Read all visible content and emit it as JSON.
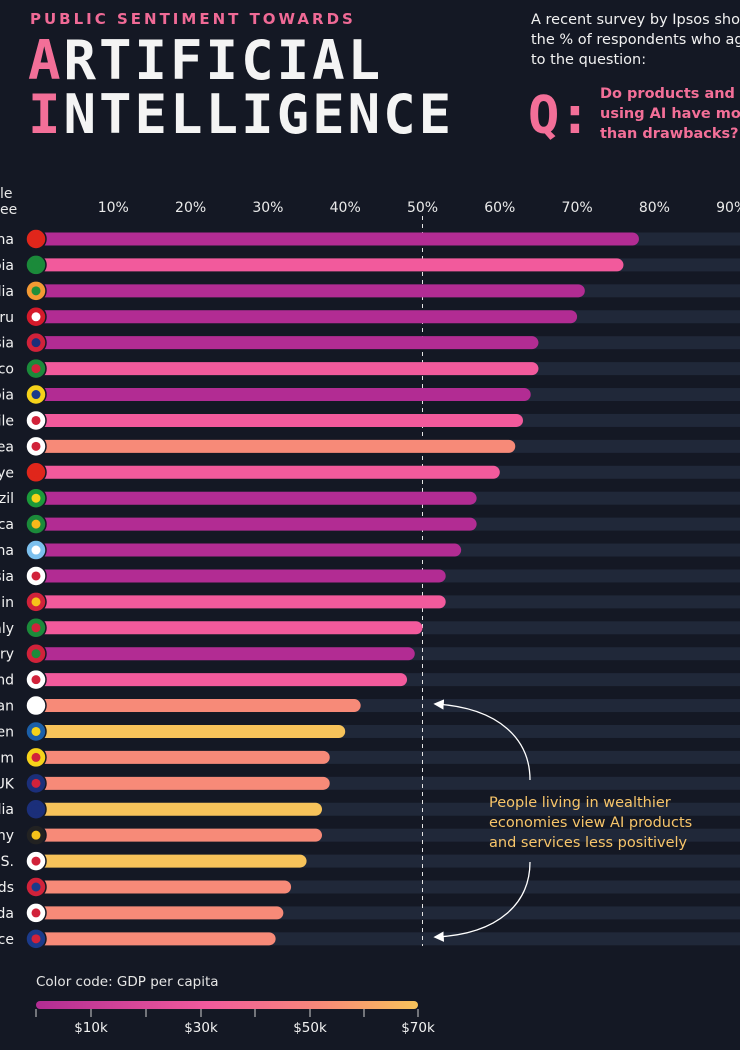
{
  "header": {
    "subtitle": "PUBLIC SENTIMENT TOWARDS",
    "title_line1_first": "A",
    "title_line1_rest": "RTIFICIAL",
    "title_line2_first": "I",
    "title_line2_rest": "NTELLIGENCE",
    "intro_lines": [
      "A recent survey by Ipsos show",
      "the % of respondents who ag",
      "to the question:"
    ],
    "q_mark": "Q:",
    "question_lines": [
      "Do products and se",
      "using AI have more",
      "than drawbacks?"
    ]
  },
  "axis_head_lines": [
    "le",
    "ee"
  ],
  "annotation_lines": [
    "People living in wealthier",
    "economies view AI products",
    "and services less positively"
  ],
  "legend": {
    "title": "Color code: GDP per capita",
    "labels": [
      "$10k",
      "$30k",
      "$50k",
      "$70k"
    ]
  },
  "colors": {
    "background": "#141824",
    "track": "#202839",
    "low_gdp": "#b22c93",
    "mid_gdp": "#f25a9c",
    "upper_gdp": "#f78a78",
    "high_gdp": "#f7c35a",
    "accent": "#f36f98"
  },
  "chart_data": {
    "type": "bar",
    "orientation": "horizontal",
    "title": "Public sentiment towards Artificial Intelligence",
    "xlim": [
      0,
      90
    ],
    "x_ticks": [
      "10%",
      "20%",
      "30%",
      "40%",
      "50%",
      "60%",
      "70%",
      "80%",
      "90%"
    ],
    "reference_line": 50,
    "categories": [
      "na",
      "bia",
      "dia",
      "eru",
      "sia",
      "ico",
      "bia",
      "ile",
      "rea",
      "iye",
      "azil",
      "rica",
      "ina",
      "sia",
      "ain",
      "aly",
      "ary",
      "and",
      "an",
      "en",
      "um",
      "UK",
      "lia",
      "any",
      "S.",
      "nds",
      "da",
      "nce"
    ],
    "flags": [
      "china",
      "saudi-arabia",
      "india",
      "peru",
      "malaysia",
      "mexico",
      "colombia",
      "chile",
      "south-korea",
      "turkiye",
      "brazil",
      "south-africa",
      "argentina",
      "russia",
      "spain",
      "italy",
      "hungary",
      "poland",
      "japan",
      "sweden",
      "belgium",
      "uk",
      "australia",
      "germany",
      "usa",
      "netherlands",
      "canada",
      "france"
    ],
    "values": [
      78,
      76,
      71,
      70,
      65,
      65,
      64,
      63,
      62,
      60,
      57,
      57,
      55,
      53,
      53,
      50,
      49,
      48,
      42,
      40,
      38,
      38,
      37,
      37,
      35,
      33,
      32,
      31
    ],
    "gdp_group": [
      "low",
      "mid",
      "low",
      "low",
      "low",
      "mid",
      "low",
      "mid",
      "upper",
      "mid",
      "low",
      "low",
      "low",
      "low",
      "mid",
      "mid",
      "low",
      "mid",
      "upper",
      "high",
      "upper",
      "upper",
      "high",
      "upper",
      "high",
      "upper",
      "upper",
      "upper"
    ]
  }
}
